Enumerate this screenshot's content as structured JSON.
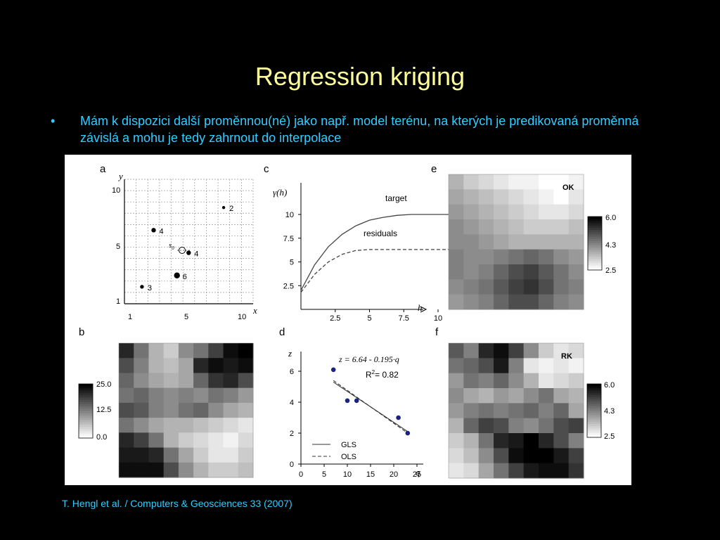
{
  "slide": {
    "title": "Regression kriging",
    "bullet_symbol": "•",
    "bullet_text": "Mám k dispozici další proměnnou(né) jako např. model terénu, na kterých je predikovaná proměnná závislá a mohu je tedy zahrnout do interpolace",
    "citation": "T. Hengl et al. / Computers & Geosciences 33 (2007)"
  },
  "colors": {
    "background": "#000000",
    "title": "#ffff99",
    "text": "#33ccff",
    "points": "#1a237e"
  },
  "panels": {
    "a": {
      "label": "a",
      "xlabel": "x",
      "ylabel": "y",
      "xticks": [
        "1",
        "5",
        "10"
      ],
      "yticks": [
        "10",
        "5",
        "1"
      ],
      "s0_label": "s",
      "s0_sub": "0",
      "points": [
        {
          "x": 9,
          "y": 9,
          "label": "2"
        },
        {
          "x": 3,
          "y": 7,
          "label": "4"
        },
        {
          "x": 6,
          "y": 5,
          "label": "4"
        },
        {
          "x": 5,
          "y": 3,
          "label": "6"
        },
        {
          "x": 2,
          "y": 2,
          "label": "3"
        }
      ]
    },
    "b": {
      "label": "b",
      "colorbar_ticks": [
        "25.0",
        "12.5",
        "0.0"
      ]
    },
    "c": {
      "label": "c",
      "ylabel": "γ(h)",
      "xlabel": "h",
      "yticks": [
        "10",
        "7.5",
        "5",
        "2.5"
      ],
      "xticks": [
        "2.5",
        "5",
        "7.5",
        "10"
      ],
      "series": [
        {
          "name": "target"
        },
        {
          "name": "residuals"
        }
      ]
    },
    "d": {
      "label": "d",
      "ylabel": "z",
      "xlabel": "q",
      "equation": "z = 6.64 - 0.195·q",
      "r2_prefix": "R",
      "r2_sup": "2",
      "r2_value": "= 0.82",
      "yticks": [
        "6",
        "4",
        "2",
        "0"
      ],
      "xticks": [
        "0",
        "5",
        "10",
        "15",
        "20",
        "25"
      ],
      "legend": [
        "GLS",
        "OLS"
      ],
      "points": [
        {
          "q": 7,
          "z": 6.1
        },
        {
          "q": 10,
          "z": 4.1
        },
        {
          "q": 12,
          "z": 4.1
        },
        {
          "q": 21,
          "z": 3.0
        },
        {
          "q": 23,
          "z": 2.0
        }
      ]
    },
    "e": {
      "label": "e",
      "map_label": "OK",
      "colorbar_ticks": [
        "6.0",
        "4.3",
        "2.5"
      ]
    },
    "f": {
      "label": "f",
      "map_label": "RK",
      "colorbar_ticks": [
        "6.0",
        "4.3",
        "2.5"
      ]
    }
  },
  "chart_data": [
    {
      "type": "line",
      "panel": "c",
      "ylabel": "γ(h)",
      "xlabel": "h",
      "xlim": [
        0,
        14
      ],
      "ylim": [
        0,
        11
      ],
      "x": [
        0,
        1,
        2,
        3,
        4,
        5,
        6,
        7,
        8,
        9,
        10,
        11,
        12,
        13
      ],
      "series": [
        {
          "name": "target",
          "values": [
            2.0,
            4.7,
            6.6,
            7.9,
            8.8,
            9.4,
            9.7,
            9.9,
            10.0,
            10.0,
            10.0,
            10.0,
            10.0,
            10.0
          ]
        },
        {
          "name": "residuals",
          "values": [
            1.8,
            3.7,
            5.0,
            5.8,
            6.2,
            6.3,
            6.3,
            6.3,
            6.3,
            6.3,
            6.3,
            6.3,
            6.3,
            6.3
          ]
        }
      ]
    },
    {
      "type": "scatter",
      "panel": "d",
      "ylabel": "z",
      "xlabel": "q",
      "xlim": [
        0,
        27
      ],
      "ylim": [
        0,
        7
      ],
      "x": [
        7,
        10,
        12,
        21,
        23
      ],
      "series": [
        {
          "values": [
            6.1,
            4.1,
            4.1,
            3.0,
            2.0
          ]
        },
        {
          "name": "GLS",
          "values": [
            5.3,
            2.1
          ]
        },
        {
          "name": "OLS",
          "values": [
            5.4,
            2.0
          ]
        }
      ]
    }
  ],
  "maps": {
    "b": [
      [
        0.85,
        0.55,
        0.3,
        0.2,
        0.45,
        0.55,
        0.75,
        0.95,
        1.0
      ],
      [
        0.7,
        0.5,
        0.3,
        0.25,
        0.35,
        0.85,
        0.95,
        0.9,
        0.95
      ],
      [
        0.6,
        0.45,
        0.35,
        0.3,
        0.35,
        0.6,
        0.8,
        0.85,
        0.7
      ],
      [
        0.55,
        0.6,
        0.5,
        0.45,
        0.5,
        0.45,
        0.55,
        0.5,
        0.4
      ],
      [
        0.7,
        0.65,
        0.5,
        0.45,
        0.55,
        0.6,
        0.45,
        0.35,
        0.3
      ],
      [
        0.55,
        0.45,
        0.35,
        0.3,
        0.3,
        0.25,
        0.2,
        0.15,
        0.1
      ],
      [
        0.85,
        0.75,
        0.55,
        0.3,
        0.2,
        0.15,
        0.1,
        0.05,
        0.15
      ],
      [
        0.9,
        0.9,
        0.85,
        0.55,
        0.35,
        0.2,
        0.1,
        0.1,
        0.2
      ],
      [
        0.95,
        0.95,
        0.95,
        0.7,
        0.45,
        0.3,
        0.2,
        0.2,
        0.25
      ]
    ],
    "e": [
      [
        0.3,
        0.2,
        0.15,
        0.1,
        0.05,
        0.05,
        0.0,
        0.0,
        0.05
      ],
      [
        0.35,
        0.3,
        0.25,
        0.2,
        0.15,
        0.1,
        0.05,
        0.0,
        0.1
      ],
      [
        0.4,
        0.35,
        0.3,
        0.25,
        0.2,
        0.15,
        0.1,
        0.1,
        0.15
      ],
      [
        0.45,
        0.4,
        0.35,
        0.3,
        0.25,
        0.2,
        0.2,
        0.2,
        0.25
      ],
      [
        0.45,
        0.45,
        0.4,
        0.35,
        0.3,
        0.3,
        0.3,
        0.3,
        0.3
      ],
      [
        0.5,
        0.45,
        0.45,
        0.5,
        0.55,
        0.6,
        0.55,
        0.45,
        0.4
      ],
      [
        0.5,
        0.45,
        0.5,
        0.6,
        0.7,
        0.75,
        0.65,
        0.55,
        0.45
      ],
      [
        0.45,
        0.5,
        0.55,
        0.65,
        0.75,
        0.8,
        0.7,
        0.55,
        0.5
      ],
      [
        0.4,
        0.45,
        0.5,
        0.6,
        0.7,
        0.7,
        0.6,
        0.5,
        0.45
      ]
    ],
    "f": [
      [
        0.65,
        0.5,
        0.85,
        0.95,
        0.75,
        0.45,
        0.2,
        0.1,
        0.15
      ],
      [
        0.55,
        0.6,
        0.7,
        0.9,
        0.5,
        0.1,
        0.05,
        0.1,
        0.05
      ],
      [
        0.4,
        0.55,
        0.5,
        0.6,
        0.45,
        0.3,
        0.1,
        0.15,
        0.2
      ],
      [
        0.45,
        0.35,
        0.3,
        0.4,
        0.35,
        0.45,
        0.55,
        0.35,
        0.3
      ],
      [
        0.4,
        0.5,
        0.55,
        0.5,
        0.55,
        0.6,
        0.5,
        0.6,
        0.35
      ],
      [
        0.3,
        0.6,
        0.75,
        0.7,
        0.5,
        0.45,
        0.55,
        0.7,
        0.75
      ],
      [
        0.2,
        0.3,
        0.55,
        0.85,
        0.9,
        1.0,
        0.85,
        0.7,
        0.5
      ],
      [
        0.15,
        0.25,
        0.45,
        0.7,
        0.95,
        1.0,
        1.0,
        0.9,
        0.75
      ],
      [
        0.1,
        0.15,
        0.35,
        0.55,
        0.75,
        0.9,
        0.95,
        0.95,
        0.8
      ]
    ]
  }
}
